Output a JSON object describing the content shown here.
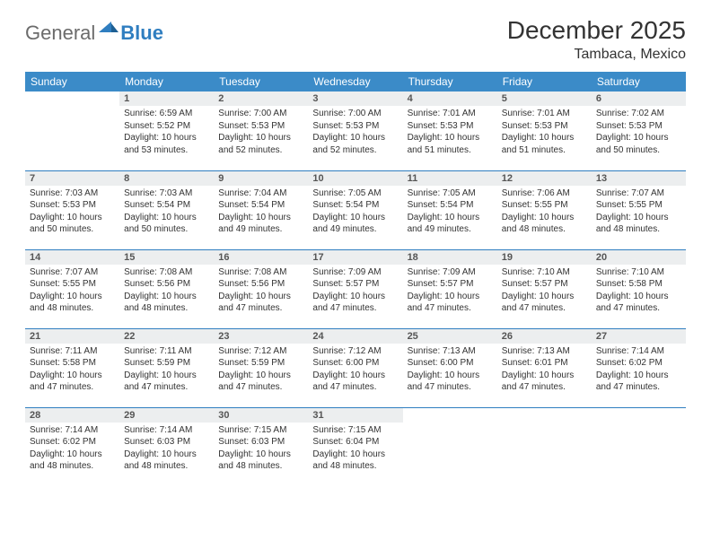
{
  "logo": {
    "text_general": "General",
    "text_blue": "Blue",
    "gray_color": "#6b6b6b",
    "blue_color": "#2f7ec0"
  },
  "title": "December 2025",
  "location": "Tambaca, Mexico",
  "colors": {
    "header_bg": "#3b8bc8",
    "header_fg": "#ffffff",
    "daynum_bg": "#eceeef",
    "daynum_fg": "#555555",
    "border": "#2f7ec0",
    "text": "#333333",
    "page_bg": "#ffffff"
  },
  "weekdays": [
    "Sunday",
    "Monday",
    "Tuesday",
    "Wednesday",
    "Thursday",
    "Friday",
    "Saturday"
  ],
  "weeks": [
    [
      null,
      {
        "n": "1",
        "sunrise": "6:59 AM",
        "sunset": "5:52 PM",
        "daylight": "10 hours and 53 minutes."
      },
      {
        "n": "2",
        "sunrise": "7:00 AM",
        "sunset": "5:53 PM",
        "daylight": "10 hours and 52 minutes."
      },
      {
        "n": "3",
        "sunrise": "7:00 AM",
        "sunset": "5:53 PM",
        "daylight": "10 hours and 52 minutes."
      },
      {
        "n": "4",
        "sunrise": "7:01 AM",
        "sunset": "5:53 PM",
        "daylight": "10 hours and 51 minutes."
      },
      {
        "n": "5",
        "sunrise": "7:01 AM",
        "sunset": "5:53 PM",
        "daylight": "10 hours and 51 minutes."
      },
      {
        "n": "6",
        "sunrise": "7:02 AM",
        "sunset": "5:53 PM",
        "daylight": "10 hours and 50 minutes."
      }
    ],
    [
      {
        "n": "7",
        "sunrise": "7:03 AM",
        "sunset": "5:53 PM",
        "daylight": "10 hours and 50 minutes."
      },
      {
        "n": "8",
        "sunrise": "7:03 AM",
        "sunset": "5:54 PM",
        "daylight": "10 hours and 50 minutes."
      },
      {
        "n": "9",
        "sunrise": "7:04 AM",
        "sunset": "5:54 PM",
        "daylight": "10 hours and 49 minutes."
      },
      {
        "n": "10",
        "sunrise": "7:05 AM",
        "sunset": "5:54 PM",
        "daylight": "10 hours and 49 minutes."
      },
      {
        "n": "11",
        "sunrise": "7:05 AM",
        "sunset": "5:54 PM",
        "daylight": "10 hours and 49 minutes."
      },
      {
        "n": "12",
        "sunrise": "7:06 AM",
        "sunset": "5:55 PM",
        "daylight": "10 hours and 48 minutes."
      },
      {
        "n": "13",
        "sunrise": "7:07 AM",
        "sunset": "5:55 PM",
        "daylight": "10 hours and 48 minutes."
      }
    ],
    [
      {
        "n": "14",
        "sunrise": "7:07 AM",
        "sunset": "5:55 PM",
        "daylight": "10 hours and 48 minutes."
      },
      {
        "n": "15",
        "sunrise": "7:08 AM",
        "sunset": "5:56 PM",
        "daylight": "10 hours and 48 minutes."
      },
      {
        "n": "16",
        "sunrise": "7:08 AM",
        "sunset": "5:56 PM",
        "daylight": "10 hours and 47 minutes."
      },
      {
        "n": "17",
        "sunrise": "7:09 AM",
        "sunset": "5:57 PM",
        "daylight": "10 hours and 47 minutes."
      },
      {
        "n": "18",
        "sunrise": "7:09 AM",
        "sunset": "5:57 PM",
        "daylight": "10 hours and 47 minutes."
      },
      {
        "n": "19",
        "sunrise": "7:10 AM",
        "sunset": "5:57 PM",
        "daylight": "10 hours and 47 minutes."
      },
      {
        "n": "20",
        "sunrise": "7:10 AM",
        "sunset": "5:58 PM",
        "daylight": "10 hours and 47 minutes."
      }
    ],
    [
      {
        "n": "21",
        "sunrise": "7:11 AM",
        "sunset": "5:58 PM",
        "daylight": "10 hours and 47 minutes."
      },
      {
        "n": "22",
        "sunrise": "7:11 AM",
        "sunset": "5:59 PM",
        "daylight": "10 hours and 47 minutes."
      },
      {
        "n": "23",
        "sunrise": "7:12 AM",
        "sunset": "5:59 PM",
        "daylight": "10 hours and 47 minutes."
      },
      {
        "n": "24",
        "sunrise": "7:12 AM",
        "sunset": "6:00 PM",
        "daylight": "10 hours and 47 minutes."
      },
      {
        "n": "25",
        "sunrise": "7:13 AM",
        "sunset": "6:00 PM",
        "daylight": "10 hours and 47 minutes."
      },
      {
        "n": "26",
        "sunrise": "7:13 AM",
        "sunset": "6:01 PM",
        "daylight": "10 hours and 47 minutes."
      },
      {
        "n": "27",
        "sunrise": "7:14 AM",
        "sunset": "6:02 PM",
        "daylight": "10 hours and 47 minutes."
      }
    ],
    [
      {
        "n": "28",
        "sunrise": "7:14 AM",
        "sunset": "6:02 PM",
        "daylight": "10 hours and 48 minutes."
      },
      {
        "n": "29",
        "sunrise": "7:14 AM",
        "sunset": "6:03 PM",
        "daylight": "10 hours and 48 minutes."
      },
      {
        "n": "30",
        "sunrise": "7:15 AM",
        "sunset": "6:03 PM",
        "daylight": "10 hours and 48 minutes."
      },
      {
        "n": "31",
        "sunrise": "7:15 AM",
        "sunset": "6:04 PM",
        "daylight": "10 hours and 48 minutes."
      },
      null,
      null,
      null
    ]
  ],
  "labels": {
    "sunrise": "Sunrise: ",
    "sunset": "Sunset: ",
    "daylight": "Daylight: "
  }
}
